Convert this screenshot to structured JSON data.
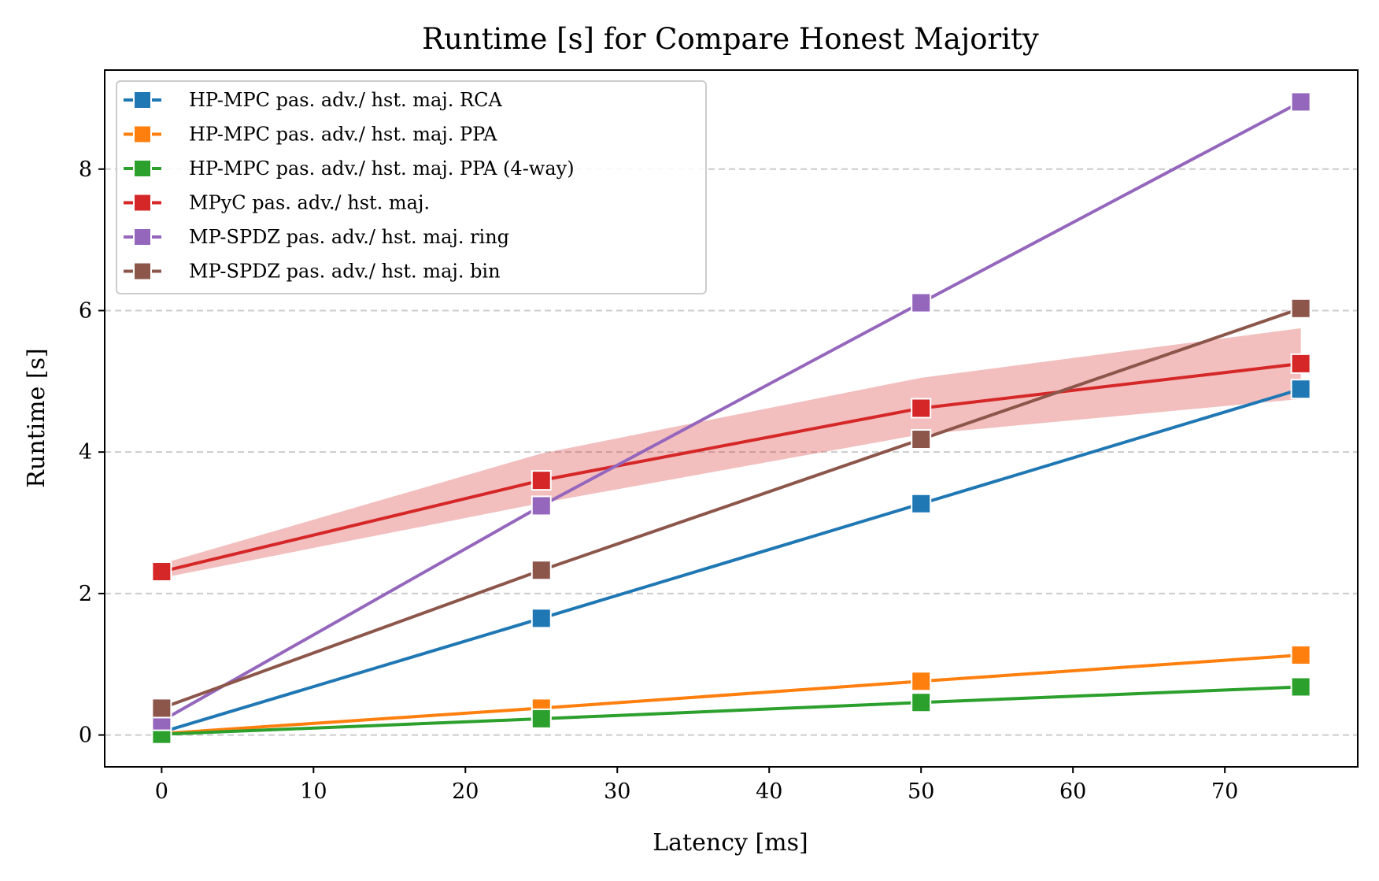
{
  "chart_data": {
    "type": "line",
    "title": "Runtime [s] for Compare Honest Majority",
    "xlabel": "Latency [ms]",
    "ylabel": "Runtime [s]",
    "xlim": [
      -3.75,
      78.75
    ],
    "ylim": [
      -0.45,
      9.4
    ],
    "xticks": [
      0,
      10,
      20,
      30,
      40,
      50,
      60,
      70
    ],
    "yticks": [
      0,
      2,
      4,
      6,
      8
    ],
    "grid": "horizontal dashed",
    "legend_position": "top-left",
    "series": [
      {
        "name": "HP-MPC pas. adv./ hst. maj. RCA",
        "color": "#1f77b4",
        "x": [
          0,
          25,
          50,
          75
        ],
        "values": [
          0.04,
          1.65,
          3.27,
          4.89
        ]
      },
      {
        "name": "HP-MPC pas. adv./ hst. maj. PPA",
        "color": "#ff7f0e",
        "x": [
          0,
          25,
          50,
          75
        ],
        "values": [
          0.02,
          0.38,
          0.76,
          1.13
        ]
      },
      {
        "name": "HP-MPC pas. adv./ hst. maj. PPA (4-way)",
        "color": "#2ca02c",
        "x": [
          0,
          25,
          50,
          75
        ],
        "values": [
          0.01,
          0.23,
          0.46,
          0.68
        ]
      },
      {
        "name": "MPyC pas. adv./ hst. maj.",
        "color": "#d62728",
        "x": [
          0,
          25,
          50,
          75
        ],
        "values": [
          2.31,
          3.6,
          4.62,
          5.25
        ],
        "band_low": [
          2.22,
          3.28,
          4.25,
          4.75
        ],
        "band_high": [
          2.42,
          3.98,
          5.05,
          5.75
        ]
      },
      {
        "name": "MP-SPDZ pas. adv./ hst. maj. ring",
        "color": "#9467bd",
        "x": [
          0,
          25,
          50,
          75
        ],
        "values": [
          0.2,
          3.24,
          6.11,
          8.95
        ]
      },
      {
        "name": "MP-SPDZ pas. adv./ hst. maj. bin",
        "color": "#8c564b",
        "x": [
          0,
          25,
          50,
          75
        ],
        "values": [
          0.38,
          2.33,
          4.18,
          6.03
        ]
      }
    ]
  }
}
